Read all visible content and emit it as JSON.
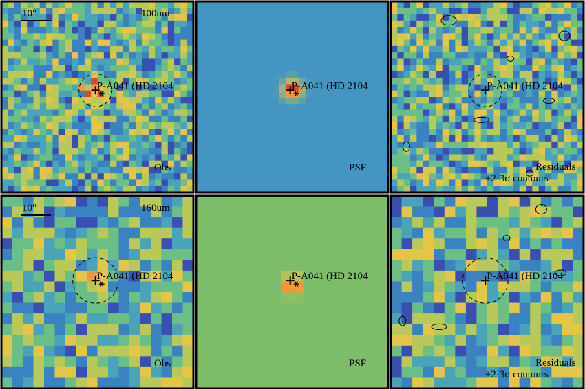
{
  "figure": {
    "rows": [
      {
        "band": "100um",
        "scalebar_label": "10\"",
        "panels": [
          {
            "kind": "obs",
            "corner_label": "Obs",
            "target": "P-A041 (HD 2104",
            "circle": true,
            "cross": true,
            "star": true
          },
          {
            "kind": "psf",
            "corner_label": "PSF",
            "target": "P-A041 (HD 2104",
            "circle": false,
            "cross": true,
            "star": true
          },
          {
            "kind": "residuals",
            "corner_label": "Residuals",
            "corner_label_2": "±2-3σ contours",
            "target": "P-A041 (HD 2104",
            "circle": true,
            "cross": true,
            "star": false
          }
        ]
      },
      {
        "band": "160um",
        "scalebar_label": "10\"",
        "panels": [
          {
            "kind": "obs",
            "corner_label": "Obs",
            "target": "P-A041 (HD 2104",
            "circle": true,
            "cross": true,
            "star": true
          },
          {
            "kind": "psf",
            "corner_label": "PSF",
            "target": "P-A041 (HD 2104",
            "circle": false,
            "cross": true,
            "star": true
          },
          {
            "kind": "residuals",
            "corner_label": "Residuals",
            "corner_label_2": "±2-3σ contours",
            "target": "P-A041 (HD 2104",
            "circle": true,
            "cross": true,
            "star": false
          }
        ]
      }
    ],
    "colormap": [
      "#3b1e8a",
      "#3a4fb2",
      "#3b82c0",
      "#4aa3b8",
      "#6bbf86",
      "#b8c95a",
      "#e3c548",
      "#ef9a3a",
      "#e0452e"
    ],
    "psf_backgrounds": [
      "#4595c2",
      "#7dbd6a"
    ]
  }
}
